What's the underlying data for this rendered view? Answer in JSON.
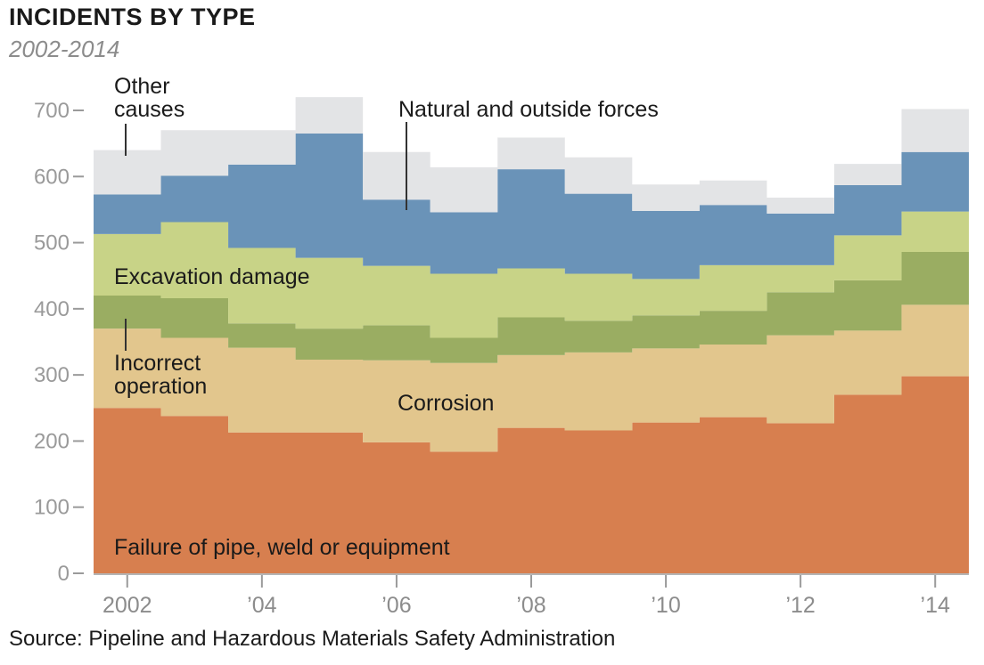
{
  "header": {
    "title": "INCIDENTS BY TYPE",
    "subtitle": "2002-2014"
  },
  "footer": {
    "source": "Source: Pipeline and Hazardous Materials Safety Administration"
  },
  "chart_data": {
    "type": "area",
    "stacked": true,
    "step": true,
    "years": [
      2002,
      2003,
      2004,
      2005,
      2006,
      2007,
      2008,
      2009,
      2010,
      2011,
      2012,
      2013,
      2014
    ],
    "x_tick_labels": [
      "2002",
      "’04",
      "’06",
      "’08",
      "’10",
      "’12",
      "’14"
    ],
    "x_tick_years": [
      2002,
      2004,
      2006,
      2008,
      2010,
      2012,
      2014
    ],
    "ylim": [
      0,
      700
    ],
    "y_ticks": [
      0,
      100,
      200,
      300,
      400,
      500,
      600,
      700
    ],
    "y_tick_labels": [
      "0",
      "100",
      "200",
      "300",
      "400",
      "500",
      "600",
      "700"
    ],
    "grid": false,
    "series": [
      {
        "name": "Failure of pipe, weld or equipment",
        "color": "#d77f4f",
        "values": [
          250,
          238,
          213,
          213,
          198,
          184,
          220,
          216,
          228,
          236,
          227,
          270,
          298
        ]
      },
      {
        "name": "Corrosion",
        "color": "#e2c68d",
        "values": [
          120,
          118,
          128,
          110,
          124,
          134,
          110,
          118,
          112,
          110,
          133,
          97,
          108
        ]
      },
      {
        "name": "Incorrect operation",
        "color": "#9aad62",
        "values": [
          50,
          60,
          37,
          47,
          53,
          38,
          57,
          48,
          50,
          51,
          65,
          76,
          80
        ]
      },
      {
        "name": "Excavation damage",
        "color": "#c8d387",
        "values": [
          93,
          115,
          114,
          107,
          90,
          97,
          74,
          71,
          55,
          69,
          41,
          68,
          61
        ]
      },
      {
        "name": "Natural and outside forces",
        "color": "#6a93b8",
        "values": [
          60,
          70,
          126,
          188,
          100,
          93,
          150,
          121,
          103,
          91,
          78,
          76,
          90
        ]
      },
      {
        "name": "Other causes",
        "color": "#e3e4e6",
        "values": [
          67,
          69,
          52,
          55,
          72,
          68,
          48,
          55,
          40,
          37,
          24,
          32,
          65
        ]
      }
    ],
    "annotations": {
      "other_causes": [
        "Other",
        "causes"
      ],
      "natural_forces": "Natural and outside forces",
      "excavation": "Excavation damage",
      "incorrect_operation": [
        "Incorrect",
        "operation"
      ],
      "corrosion": "Corrosion",
      "failure": "Failure of pipe, weld or equipment"
    }
  }
}
